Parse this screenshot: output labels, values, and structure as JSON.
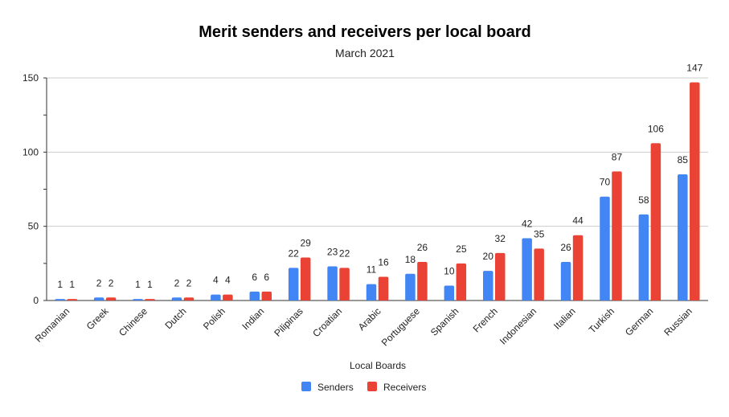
{
  "chart_data": {
    "type": "bar",
    "title": "Merit senders and receivers per local board",
    "subtitle": "March 2021",
    "xlabel": "Local Boards",
    "ylabel": "",
    "ylim": [
      0,
      150
    ],
    "yticks": [
      0,
      50,
      100,
      150
    ],
    "grid": true,
    "legend_position": "bottom",
    "categories": [
      "Romanian",
      "Greek",
      "Chinese",
      "Dutch",
      "Polish",
      "Indian",
      "Pilipinas",
      "Croatian",
      "Arabic",
      "Portuguese",
      "Spanish",
      "French",
      "Indonesian",
      "Italian",
      "Turkish",
      "German",
      "Russian"
    ],
    "series": [
      {
        "name": "Senders",
        "color": "#4285F4",
        "values": [
          1,
          2,
          1,
          2,
          4,
          6,
          22,
          23,
          11,
          18,
          10,
          20,
          42,
          26,
          70,
          58,
          85
        ]
      },
      {
        "name": "Receivers",
        "color": "#EA4335",
        "values": [
          1,
          2,
          1,
          2,
          4,
          6,
          29,
          22,
          16,
          26,
          25,
          32,
          35,
          44,
          87,
          106,
          147
        ]
      }
    ]
  }
}
